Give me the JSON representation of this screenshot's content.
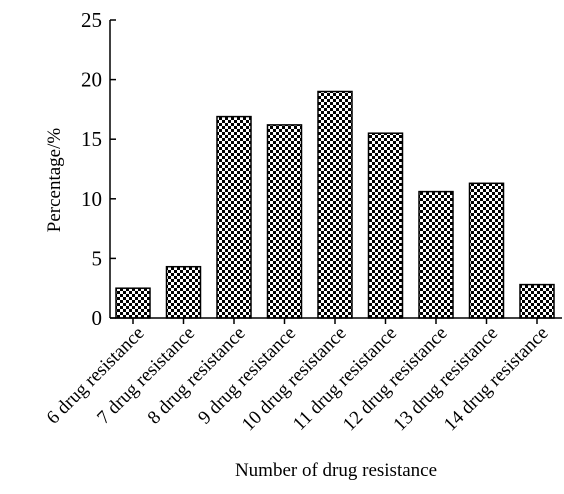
{
  "chart_data": {
    "type": "bar",
    "title": "",
    "xlabel": "Number of drug resistance",
    "ylabel": "Percentage/%",
    "ylim": [
      0,
      25
    ],
    "yticks": [
      "0",
      "5",
      "10",
      "15",
      "20",
      "25"
    ],
    "grid": false,
    "legend": "none",
    "bar_fill": "checkerboard",
    "colors": {
      "bar_dark": "#000000",
      "bar_light": "#ffffff",
      "axis": "#000000"
    },
    "categories": [
      "6 drug resistance",
      "7 drug resistance",
      "8 drug resistance",
      "9 drug resistance",
      "10 drug resistance",
      "11 drug resistance",
      "12 drug resistance",
      "13 drug resistance",
      "14 drug resistance"
    ],
    "values": [
      2.5,
      4.3,
      16.9,
      16.2,
      19.0,
      15.5,
      10.6,
      11.3,
      2.8
    ]
  }
}
